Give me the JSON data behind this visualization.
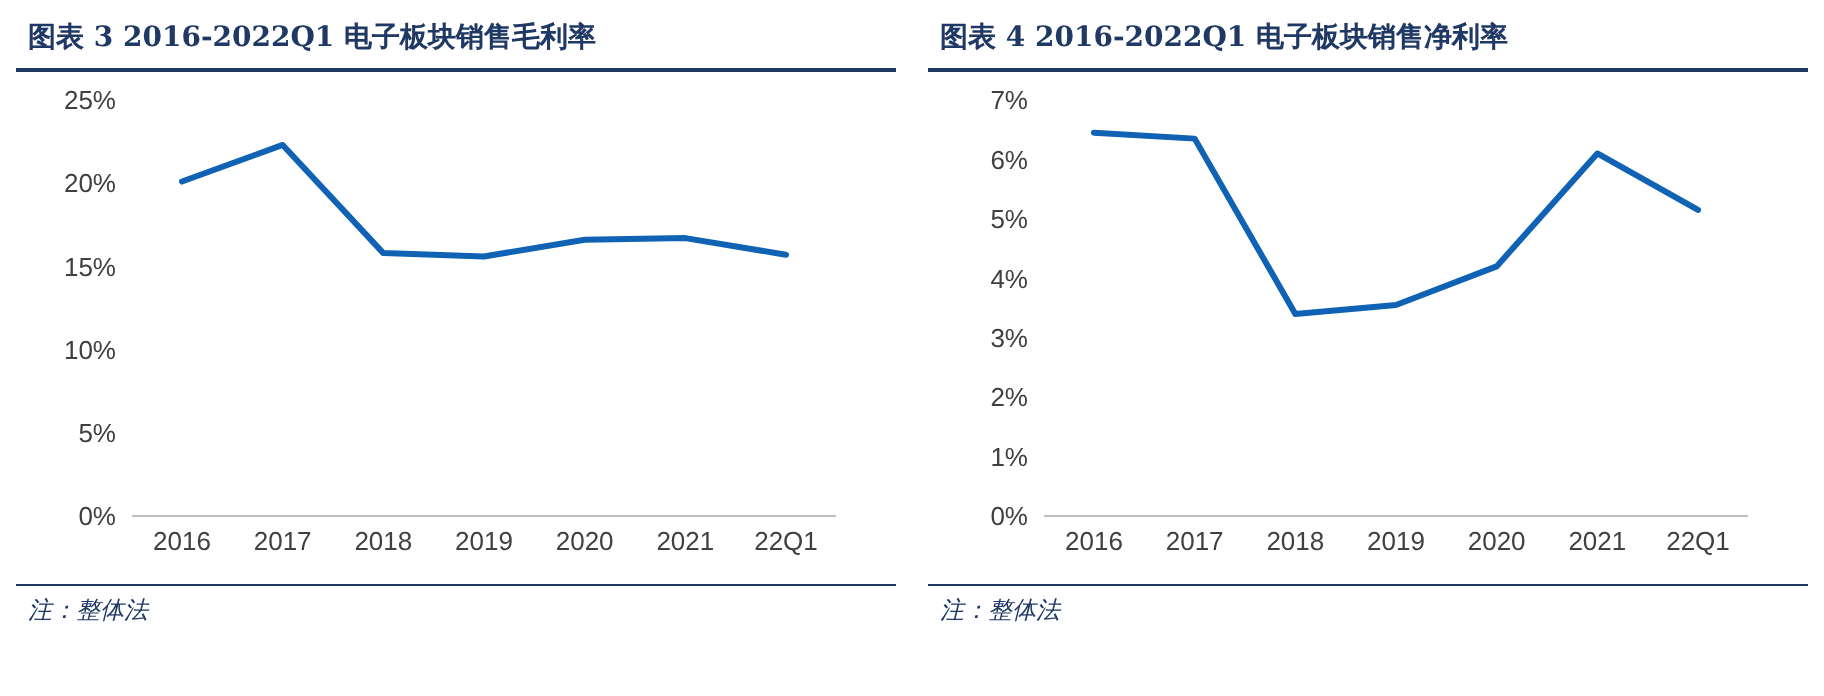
{
  "chart_data": [
    {
      "type": "line",
      "title": "图表 3   2016-2022Q1 电子板块销售毛利率",
      "categories": [
        "2016",
        "2017",
        "2018",
        "2019",
        "2020",
        "2021",
        "22Q1"
      ],
      "series": [
        {
          "color": "#0f62b4",
          "values": [
            20.1,
            22.3,
            15.8,
            15.6,
            16.6,
            16.7,
            15.7
          ]
        }
      ],
      "ylim": [
        0,
        25
      ],
      "yticks": [
        {
          "value": 0,
          "label": "0%"
        },
        {
          "value": 5,
          "label": "5%"
        },
        {
          "value": 10,
          "label": "10%"
        },
        {
          "value": 15,
          "label": "15%"
        },
        {
          "value": 20,
          "label": "20%"
        },
        {
          "value": 25,
          "label": "25%"
        }
      ],
      "grid": false,
      "legend": false,
      "marker": "none",
      "annotations": [
        "注：整体法"
      ]
    },
    {
      "type": "line",
      "title": "图表 4   2016-2022Q1 电子板块销售净利率",
      "categories": [
        "2016",
        "2017",
        "2018",
        "2019",
        "2020",
        "2021",
        "22Q1"
      ],
      "series": [
        {
          "color": "#0f62b4",
          "values": [
            6.45,
            6.35,
            3.4,
            3.55,
            4.2,
            6.1,
            5.15
          ]
        }
      ],
      "ylim": [
        0,
        7
      ],
      "yticks": [
        {
          "value": 0,
          "label": "0%"
        },
        {
          "value": 1,
          "label": "1%"
        },
        {
          "value": 2,
          "label": "2%"
        },
        {
          "value": 3,
          "label": "3%"
        },
        {
          "value": 4,
          "label": "4%"
        },
        {
          "value": 5,
          "label": "5%"
        },
        {
          "value": 6,
          "label": "6%"
        },
        {
          "value": 7,
          "label": "7%"
        }
      ],
      "grid": false,
      "legend": false,
      "marker": "none",
      "annotations": [
        "注：整体法"
      ]
    }
  ]
}
